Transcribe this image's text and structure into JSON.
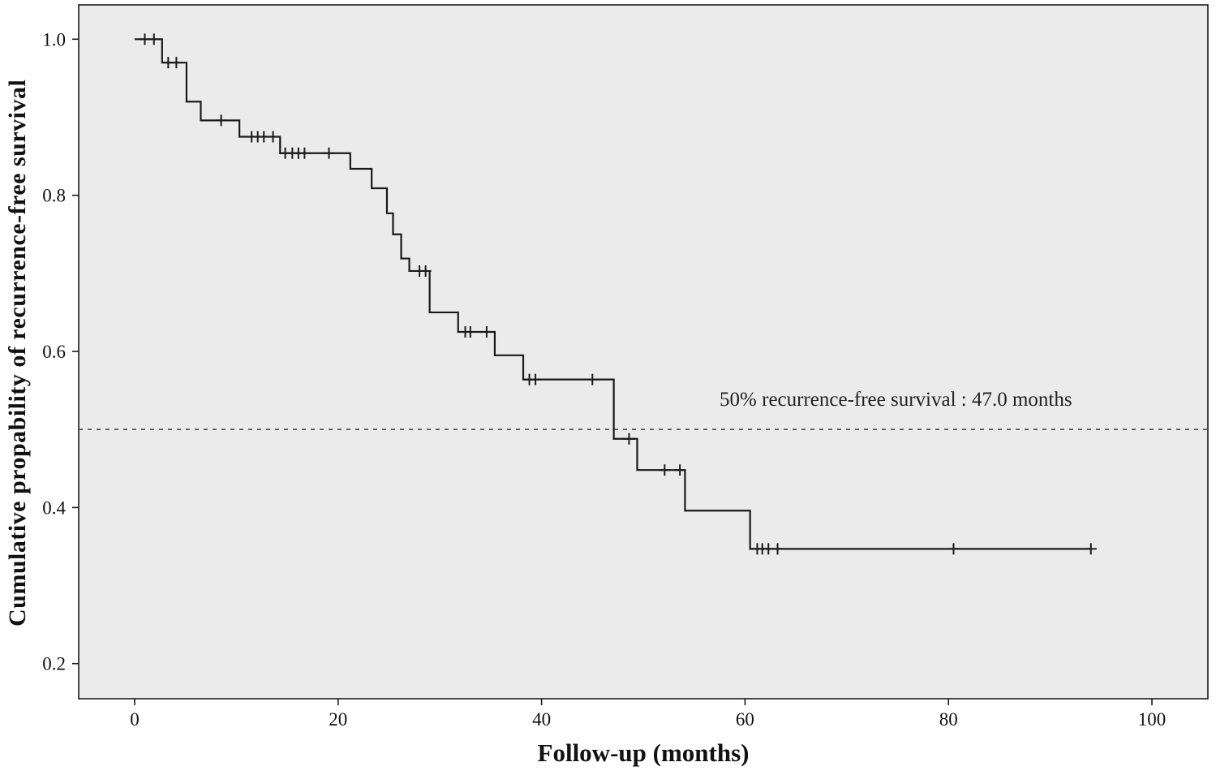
{
  "chart_data": {
    "type": "line",
    "subtype": "kaplan_meier_step_function",
    "title": "",
    "xlabel": "Follow-up (months)",
    "ylabel": "Cumulative propability of recurrence-free survival",
    "xlim": [
      -5.5,
      105.5
    ],
    "ylim": [
      0.155,
      1.044
    ],
    "xticks": [
      0,
      20,
      40,
      60,
      80,
      100
    ],
    "yticks": [
      0.2,
      0.4,
      0.6,
      0.8,
      1.0
    ],
    "grid": false,
    "legend_position": "none",
    "plot_background": "#ebebeb",
    "frame_color": "#1a1a1a",
    "line_color": "#1a1a1a",
    "reference_line": {
      "y": 0.5,
      "style": "dashed",
      "color": "#4d4d4d"
    },
    "annotation": {
      "text": "50% recurrence-free survival : 47.0 months",
      "x": 57.5,
      "y": 0.525
    },
    "series": [
      {
        "name": "Recurrence-free survival",
        "steps": [
          [
            0,
            1.0
          ],
          [
            2.7,
            0.97
          ],
          [
            5.1,
            0.92
          ],
          [
            6.5,
            0.896
          ],
          [
            10.3,
            0.875
          ],
          [
            14.3,
            0.854
          ],
          [
            21.2,
            0.834
          ],
          [
            23.3,
            0.809
          ],
          [
            24.8,
            0.777
          ],
          [
            25.4,
            0.75
          ],
          [
            26.2,
            0.719
          ],
          [
            27.0,
            0.703
          ],
          [
            29.0,
            0.65
          ],
          [
            31.8,
            0.625
          ],
          [
            35.4,
            0.595
          ],
          [
            38.2,
            0.564
          ],
          [
            47.1,
            0.488
          ],
          [
            49.4,
            0.448
          ],
          [
            54.1,
            0.396
          ],
          [
            60.5,
            0.347
          ]
        ],
        "end_time": 94,
        "censor_marks": [
          [
            1.0,
            1.0
          ],
          [
            1.9,
            1.0
          ],
          [
            3.3,
            0.97
          ],
          [
            4.1,
            0.97
          ],
          [
            8.5,
            0.896
          ],
          [
            11.5,
            0.875
          ],
          [
            12.1,
            0.875
          ],
          [
            12.7,
            0.875
          ],
          [
            13.6,
            0.875
          ],
          [
            14.8,
            0.854
          ],
          [
            15.5,
            0.854
          ],
          [
            16.1,
            0.854
          ],
          [
            16.7,
            0.854
          ],
          [
            19.1,
            0.854
          ],
          [
            28.0,
            0.703
          ],
          [
            28.6,
            0.703
          ],
          [
            32.5,
            0.625
          ],
          [
            33.0,
            0.625
          ],
          [
            34.6,
            0.625
          ],
          [
            38.8,
            0.564
          ],
          [
            39.4,
            0.564
          ],
          [
            45.0,
            0.564
          ],
          [
            48.6,
            0.488
          ],
          [
            52.1,
            0.448
          ],
          [
            53.6,
            0.448
          ],
          [
            61.2,
            0.347
          ],
          [
            61.7,
            0.347
          ],
          [
            62.3,
            0.347
          ],
          [
            63.2,
            0.347
          ],
          [
            80.5,
            0.347
          ],
          [
            94.0,
            0.347
          ]
        ]
      }
    ]
  }
}
